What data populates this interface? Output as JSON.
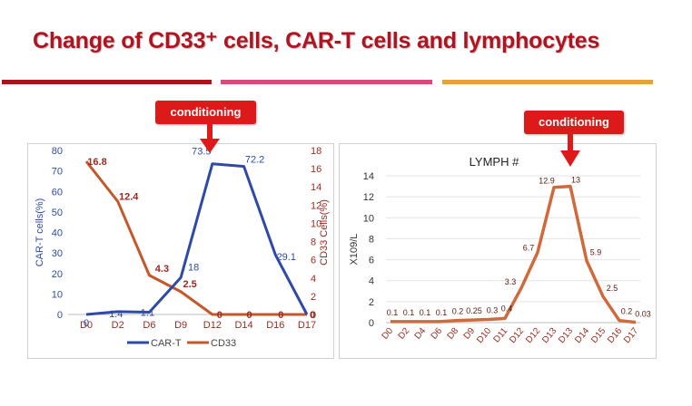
{
  "title": "Change of CD33⁺ cells, CAR-T cells and lymphocytes",
  "colors": {
    "title": "#b01420",
    "rule_left": "#a8151c",
    "rule_mid": "#d84a78",
    "rule_right": "#e5a13a",
    "callout": "#dd1a1a",
    "car_t": "#2e4aa6",
    "cd33": "#c4582a",
    "lymph": "#cf6a3c",
    "label_red": "#9b2a20",
    "label_blue": "#2e4aa6"
  },
  "chart_data": [
    {
      "type": "line",
      "title": "",
      "callout": "conditioning",
      "categories": [
        "D0",
        "D2",
        "D6",
        "D9",
        "D12",
        "D14",
        "D16",
        "D17"
      ],
      "series": [
        {
          "name": "CAR-T",
          "axis": "left",
          "values": [
            0,
            1.4,
            1.1,
            18,
            73.5,
            72.2,
            29.1,
            0
          ],
          "labels": [
            "0",
            "1.4",
            "1.1",
            "18",
            "73.5",
            "72.2",
            "29.1",
            "0"
          ]
        },
        {
          "name": "CD33",
          "axis": "right",
          "values": [
            16.8,
            12.4,
            4.3,
            2.5,
            0,
            0,
            0,
            0
          ],
          "labels": [
            "16.8",
            "12.4",
            "4.3",
            "2.5",
            "0",
            "0",
            "0",
            "0"
          ]
        }
      ],
      "ylabel": "CAR-T cells(%)",
      "y2label": "CD33 Cells(%)",
      "ylim": [
        0,
        80
      ],
      "y2lim": [
        0,
        18
      ],
      "yticks": [
        "0",
        "10",
        "20",
        "30",
        "40",
        "50",
        "60",
        "70",
        "80"
      ],
      "y2ticks": [
        "0",
        "2",
        "4",
        "6",
        "8",
        "10",
        "12",
        "14",
        "16",
        "18"
      ],
      "legend": "bottom"
    },
    {
      "type": "line",
      "title": "LYMPH #",
      "callout": "conditioning",
      "categories": [
        "D0",
        "D2",
        "D4",
        "D6",
        "D8",
        "D9",
        "D10",
        "D11",
        "D12",
        "D12",
        "D13",
        "D13",
        "D14",
        "D15",
        "D16",
        "D17"
      ],
      "series": [
        {
          "name": "LYMPH #",
          "values": [
            0.1,
            0.1,
            0.1,
            0.1,
            0.2,
            0.25,
            0.3,
            0.4,
            3.3,
            6.7,
            12.9,
            13,
            5.9,
            2.5,
            0.2,
            0.03
          ],
          "labels": [
            "0.1",
            "0.1",
            "0.1",
            "0.1",
            "0.2",
            "0.25",
            "0.3",
            "0.4",
            "3.3",
            "6.7",
            "12.9",
            "13",
            "5.9",
            "2.5",
            "0.2",
            "0.03"
          ]
        }
      ],
      "ylabel": "X109/L",
      "ylim": [
        0,
        14
      ],
      "yticks": [
        "0",
        "2",
        "4",
        "6",
        "8",
        "10",
        "12",
        "14"
      ]
    }
  ]
}
